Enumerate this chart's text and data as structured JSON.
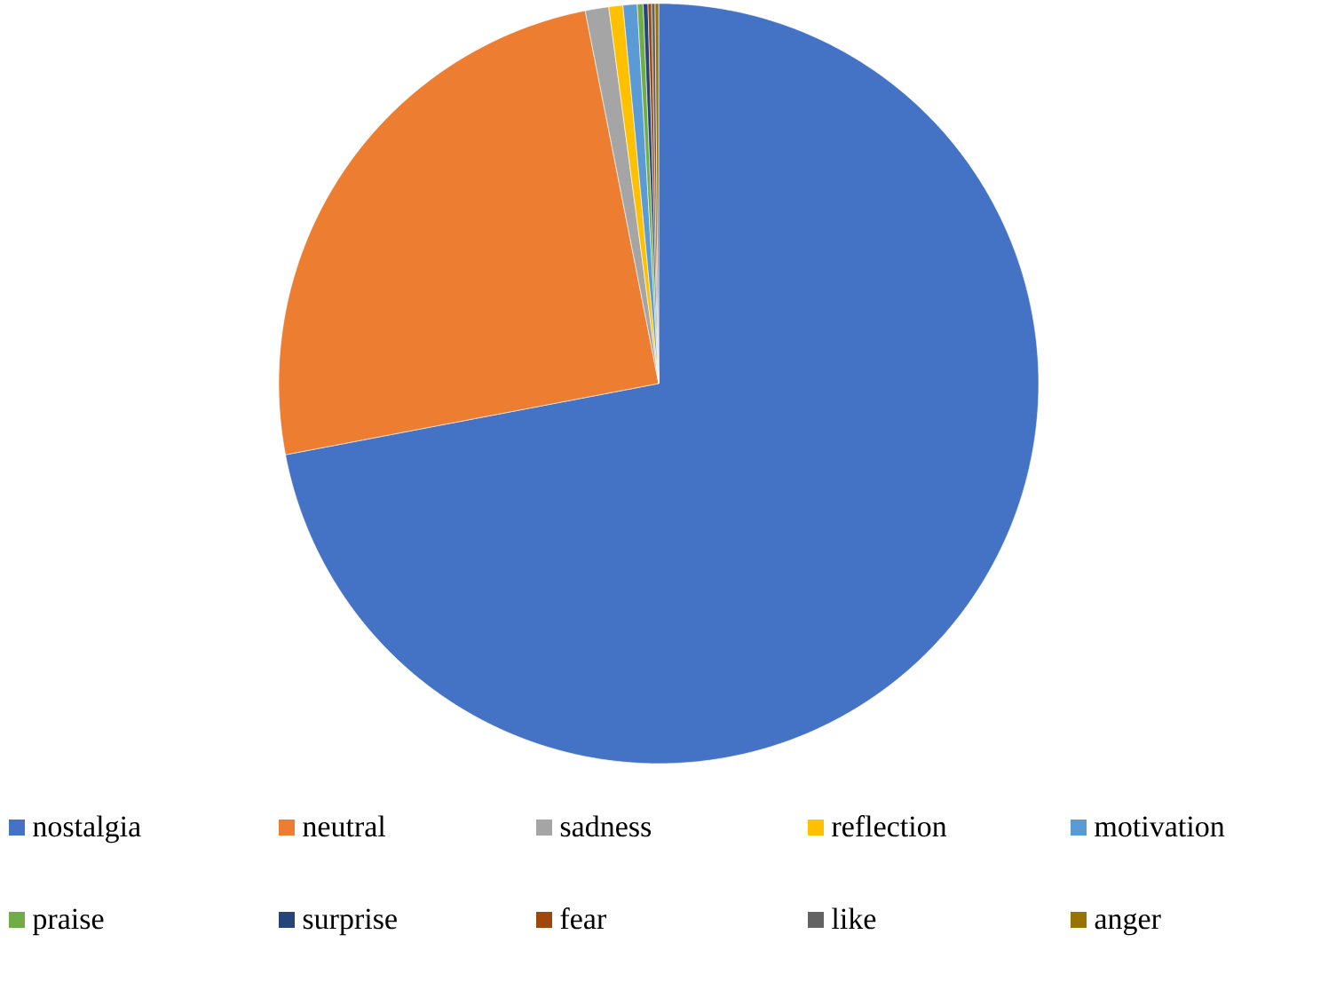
{
  "chart_data": {
    "type": "pie",
    "categories": [
      "nostalgia",
      "neutral",
      "sadness",
      "reflection",
      "motivation",
      "praise",
      "surprise",
      "fear",
      "like",
      "anger"
    ],
    "values": [
      72,
      24.9,
      1.0,
      0.6,
      0.6,
      0.25,
      0.2,
      0.15,
      0.15,
      0.15
    ],
    "colors": [
      "#4472c4",
      "#ed7d31",
      "#a5a5a5",
      "#ffc000",
      "#5b9bd5",
      "#70ad47",
      "#264478",
      "#9e480e",
      "#636363",
      "#997300"
    ],
    "legend": "bottom"
  }
}
